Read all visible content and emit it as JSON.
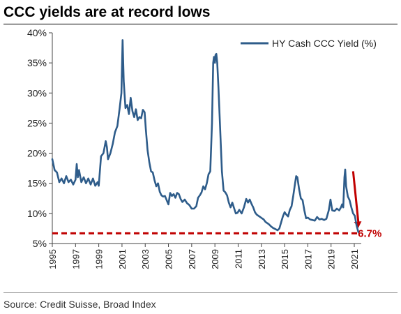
{
  "title": "CCC yields are at record lows",
  "source": "Source: Credit Suisse, Broad Index",
  "chart_data": {
    "type": "line",
    "title": "CCC yields are at record lows",
    "ylim": [
      5,
      40
    ],
    "xlim": [
      1995,
      2021.6
    ],
    "y_ticks": [
      {
        "value": 5,
        "label": "5%"
      },
      {
        "value": 10,
        "label": "10%"
      },
      {
        "value": 15,
        "label": "15%"
      },
      {
        "value": 20,
        "label": "20%"
      },
      {
        "value": 25,
        "label": "25%"
      },
      {
        "value": 30,
        "label": "30%"
      },
      {
        "value": 35,
        "label": "35%"
      },
      {
        "value": 40,
        "label": "40%"
      }
    ],
    "x_ticks": [
      {
        "value": 1995,
        "label": "1995"
      },
      {
        "value": 1997,
        "label": "1997"
      },
      {
        "value": 1999,
        "label": "1999"
      },
      {
        "value": 2001,
        "label": "2001"
      },
      {
        "value": 2003,
        "label": "2003"
      },
      {
        "value": 2005,
        "label": "2005"
      },
      {
        "value": 2007,
        "label": "2007"
      },
      {
        "value": 2009,
        "label": "2009"
      },
      {
        "value": 2011,
        "label": "2011"
      },
      {
        "value": 2013,
        "label": "2013"
      },
      {
        "value": 2015,
        "label": "2015"
      },
      {
        "value": 2017,
        "label": "2017"
      },
      {
        "value": 2019,
        "label": "2019"
      },
      {
        "value": 2021,
        "label": "2021"
      }
    ],
    "grid": false,
    "legend": "top-right",
    "series": [
      {
        "name": "HY Cash CCC Yield (%)",
        "color": "#2e5c8a",
        "points": [
          [
            1995.0,
            19.0
          ],
          [
            1995.2,
            17.2
          ],
          [
            1995.4,
            16.8
          ],
          [
            1995.6,
            15.2
          ],
          [
            1995.8,
            15.8
          ],
          [
            1996.0,
            15.0
          ],
          [
            1996.2,
            16.2
          ],
          [
            1996.4,
            15.2
          ],
          [
            1996.6,
            15.6
          ],
          [
            1996.8,
            14.8
          ],
          [
            1997.0,
            15.6
          ],
          [
            1997.1,
            18.2
          ],
          [
            1997.2,
            16.0
          ],
          [
            1997.3,
            17.2
          ],
          [
            1997.5,
            15.2
          ],
          [
            1997.7,
            16.0
          ],
          [
            1997.9,
            15.0
          ],
          [
            1998.1,
            15.8
          ],
          [
            1998.3,
            14.8
          ],
          [
            1998.5,
            15.8
          ],
          [
            1998.7,
            14.6
          ],
          [
            1998.9,
            15.2
          ],
          [
            1999.0,
            14.6
          ],
          [
            1999.2,
            19.5
          ],
          [
            1999.4,
            20.0
          ],
          [
            1999.6,
            22.0
          ],
          [
            1999.7,
            21.0
          ],
          [
            1999.8,
            19.0
          ],
          [
            2000.0,
            20.0
          ],
          [
            2000.2,
            21.5
          ],
          [
            2000.4,
            23.5
          ],
          [
            2000.6,
            24.5
          ],
          [
            2000.8,
            27.5
          ],
          [
            2000.95,
            30.0
          ],
          [
            2001.05,
            38.8
          ],
          [
            2001.15,
            32.0
          ],
          [
            2001.3,
            27.5
          ],
          [
            2001.45,
            28.0
          ],
          [
            2001.6,
            26.5
          ],
          [
            2001.75,
            29.2
          ],
          [
            2001.9,
            27.0
          ],
          [
            2002.05,
            26.0
          ],
          [
            2002.2,
            27.3
          ],
          [
            2002.35,
            25.5
          ],
          [
            2002.5,
            26.0
          ],
          [
            2002.65,
            25.8
          ],
          [
            2002.8,
            27.2
          ],
          [
            2002.95,
            26.8
          ],
          [
            2003.05,
            24.0
          ],
          [
            2003.2,
            20.5
          ],
          [
            2003.35,
            18.5
          ],
          [
            2003.5,
            17.0
          ],
          [
            2003.65,
            16.8
          ],
          [
            2003.8,
            15.5
          ],
          [
            2003.95,
            14.5
          ],
          [
            2004.1,
            15.0
          ],
          [
            2004.25,
            13.6
          ],
          [
            2004.4,
            13.0
          ],
          [
            2004.55,
            12.8
          ],
          [
            2004.7,
            12.9
          ],
          [
            2004.85,
            12.2
          ],
          [
            2005.0,
            11.5
          ],
          [
            2005.15,
            13.4
          ],
          [
            2005.3,
            12.9
          ],
          [
            2005.45,
            13.2
          ],
          [
            2005.6,
            12.6
          ],
          [
            2005.75,
            13.4
          ],
          [
            2005.9,
            13.2
          ],
          [
            2006.05,
            12.4
          ],
          [
            2006.2,
            11.9
          ],
          [
            2006.4,
            12.3
          ],
          [
            2006.6,
            11.7
          ],
          [
            2006.8,
            11.4
          ],
          [
            2007.0,
            10.8
          ],
          [
            2007.2,
            10.8
          ],
          [
            2007.4,
            11.2
          ],
          [
            2007.55,
            12.6
          ],
          [
            2007.7,
            13.0
          ],
          [
            2007.85,
            13.5
          ],
          [
            2008.0,
            14.5
          ],
          [
            2008.15,
            14.0
          ],
          [
            2008.3,
            15.0
          ],
          [
            2008.45,
            16.5
          ],
          [
            2008.6,
            17.0
          ],
          [
            2008.75,
            25.0
          ],
          [
            2008.85,
            35.0
          ],
          [
            2008.92,
            36.0
          ],
          [
            2009.0,
            35.0
          ],
          [
            2009.05,
            36.3
          ],
          [
            2009.12,
            36.5
          ],
          [
            2009.2,
            35.0
          ],
          [
            2009.3,
            31.0
          ],
          [
            2009.45,
            24.0
          ],
          [
            2009.6,
            17.0
          ],
          [
            2009.75,
            13.8
          ],
          [
            2009.9,
            13.5
          ],
          [
            2010.05,
            13.0
          ],
          [
            2010.2,
            11.8
          ],
          [
            2010.35,
            11.0
          ],
          [
            2010.5,
            11.8
          ],
          [
            2010.65,
            10.9
          ],
          [
            2010.8,
            10.0
          ],
          [
            2010.95,
            10.1
          ],
          [
            2011.1,
            10.6
          ],
          [
            2011.3,
            10.0
          ],
          [
            2011.5,
            11.0
          ],
          [
            2011.7,
            12.4
          ],
          [
            2011.85,
            11.8
          ],
          [
            2012.0,
            12.3
          ],
          [
            2012.15,
            11.6
          ],
          [
            2012.3,
            11.0
          ],
          [
            2012.45,
            10.2
          ],
          [
            2012.6,
            9.8
          ],
          [
            2012.75,
            9.6
          ],
          [
            2012.9,
            9.4
          ],
          [
            2013.05,
            9.2
          ],
          [
            2013.2,
            9.0
          ],
          [
            2013.35,
            8.6
          ],
          [
            2013.5,
            8.4
          ],
          [
            2013.65,
            8.2
          ],
          [
            2013.8,
            7.9
          ],
          [
            2014.0,
            7.6
          ],
          [
            2014.2,
            7.4
          ],
          [
            2014.4,
            7.2
          ],
          [
            2014.55,
            7.5
          ],
          [
            2014.7,
            8.5
          ],
          [
            2014.85,
            9.5
          ],
          [
            2015.0,
            10.2
          ],
          [
            2015.15,
            9.8
          ],
          [
            2015.3,
            9.5
          ],
          [
            2015.45,
            10.6
          ],
          [
            2015.6,
            11.2
          ],
          [
            2015.75,
            13.0
          ],
          [
            2015.9,
            15.0
          ],
          [
            2016.0,
            16.2
          ],
          [
            2016.1,
            16.0
          ],
          [
            2016.25,
            14.0
          ],
          [
            2016.4,
            12.5
          ],
          [
            2016.55,
            12.2
          ],
          [
            2016.7,
            10.5
          ],
          [
            2016.85,
            9.2
          ],
          [
            2017.0,
            9.3
          ],
          [
            2017.2,
            9.0
          ],
          [
            2017.4,
            8.9
          ],
          [
            2017.6,
            8.8
          ],
          [
            2017.8,
            9.4
          ],
          [
            2018.0,
            9.0
          ],
          [
            2018.2,
            9.1
          ],
          [
            2018.4,
            8.9
          ],
          [
            2018.6,
            9.1
          ],
          [
            2018.8,
            10.5
          ],
          [
            2018.95,
            12.3
          ],
          [
            2019.1,
            10.5
          ],
          [
            2019.3,
            10.4
          ],
          [
            2019.5,
            10.8
          ],
          [
            2019.7,
            10.5
          ],
          [
            2019.85,
            11.0
          ],
          [
            2019.95,
            11.5
          ],
          [
            2020.05,
            11.0
          ],
          [
            2020.15,
            16.0
          ],
          [
            2020.22,
            17.3
          ],
          [
            2020.3,
            14.5
          ],
          [
            2020.45,
            12.8
          ],
          [
            2020.6,
            12.2
          ],
          [
            2020.75,
            11.0
          ],
          [
            2020.9,
            10.0
          ],
          [
            2021.05,
            9.6
          ],
          [
            2021.2,
            8.0
          ],
          [
            2021.35,
            6.9
          ]
        ]
      }
    ],
    "annotations": [
      {
        "type": "hline",
        "y": 6.7,
        "color": "#c00000",
        "style": "dashed"
      },
      {
        "type": "arrow",
        "from": [
          2020.9,
          17.0
        ],
        "to": [
          2021.35,
          7.6
        ],
        "color": "#c00000"
      },
      {
        "type": "label",
        "text": "6.7%",
        "x": 2021.55,
        "y": 6.7,
        "color": "#c00000"
      }
    ]
  }
}
